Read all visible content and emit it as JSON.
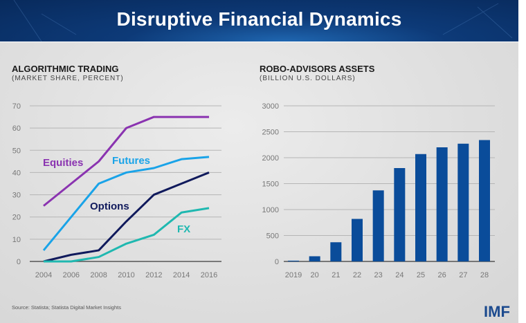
{
  "header": {
    "title": "Disruptive Financial Dynamics"
  },
  "footer": {
    "source": "Source: Statista; Statista Digital Market Insights",
    "logo": "IMF"
  },
  "colors": {
    "equities": "#8a33b0",
    "futures": "#19a3e8",
    "options": "#101a5c",
    "fx": "#1fb8b0",
    "bars": "#0a4c9a",
    "header": "#0b3266"
  },
  "chart_data": [
    {
      "type": "line",
      "title": "ALGORITHMIC TRADING",
      "subtitle": "(MARKET SHARE, PERCENT)",
      "x": [
        "2004",
        "2006",
        "2008",
        "2010",
        "2012",
        "2014",
        "2016"
      ],
      "yticks": [
        "0",
        "10",
        "20",
        "30",
        "40",
        "50",
        "60",
        "70"
      ],
      "ylim": [
        0,
        70
      ],
      "grid": true,
      "series": [
        {
          "name": "Equities",
          "values": [
            25,
            35,
            45,
            60,
            65,
            65,
            65
          ]
        },
        {
          "name": "Futures",
          "values": [
            5,
            20,
            35,
            40,
            42,
            46,
            47
          ]
        },
        {
          "name": "Options",
          "values": [
            0,
            3,
            5,
            18,
            30,
            35,
            40
          ]
        },
        {
          "name": "FX",
          "values": [
            0,
            0,
            2,
            8,
            12,
            22,
            24
          ]
        }
      ]
    },
    {
      "type": "bar",
      "title": "ROBO-ADVISORS ASSETS",
      "subtitle": "(BILLION U.S. DOLLARS)",
      "categories": [
        "2019",
        "20",
        "21",
        "22",
        "23",
        "24",
        "25",
        "26",
        "27",
        "28"
      ],
      "values": [
        15,
        100,
        370,
        820,
        1370,
        1800,
        2070,
        2200,
        2270,
        2340
      ],
      "yticks": [
        "0",
        "500",
        "1000",
        "1500",
        "2000",
        "2500",
        "3000"
      ],
      "ylim": [
        0,
        3000
      ],
      "grid": true
    }
  ]
}
